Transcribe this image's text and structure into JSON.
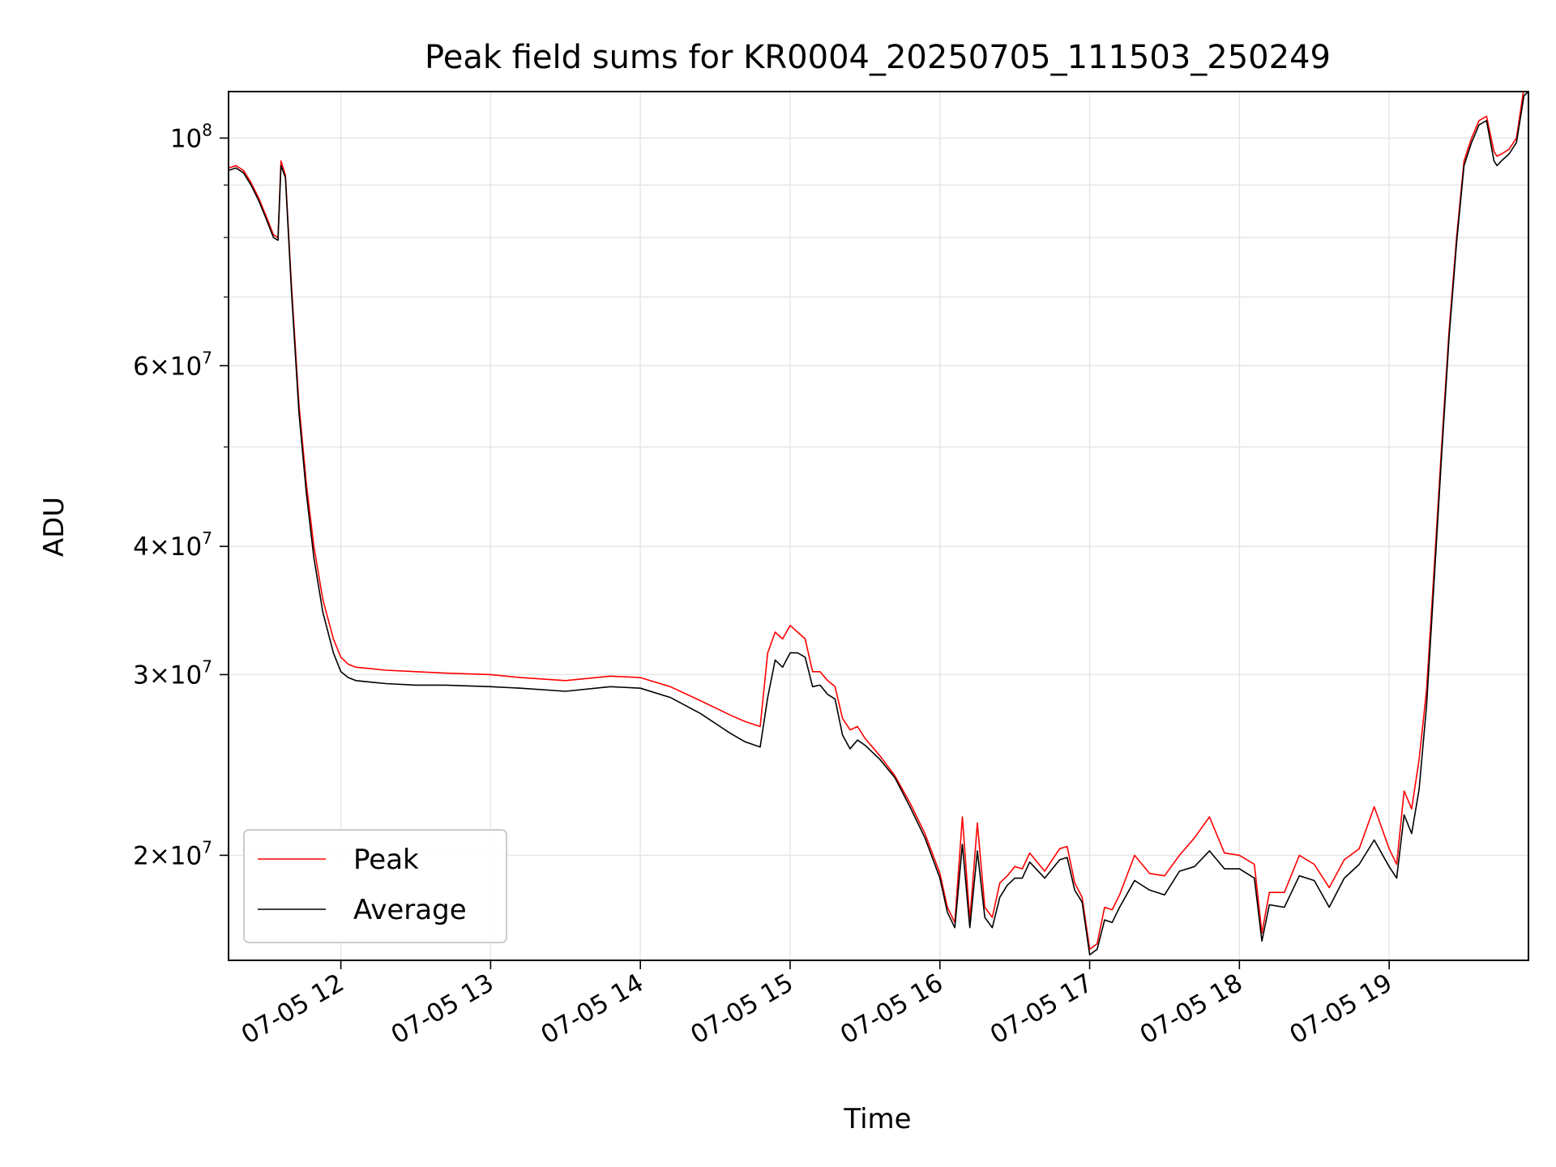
{
  "chart_data": {
    "type": "line",
    "title": "Peak field sums for KR0004_20250705_111503_250249",
    "xlabel": "Time",
    "ylabel": "ADU",
    "x_unit": "hours",
    "xlim": [
      11.25,
      19.93
    ],
    "ylim": [
      15800000,
      111000000
    ],
    "yscale": "log",
    "grid": true,
    "legend_position": "lower-left",
    "x_ticks": [
      {
        "value": 12,
        "label": "07-05 12"
      },
      {
        "value": 13,
        "label": "07-05 13"
      },
      {
        "value": 14,
        "label": "07-05 14"
      },
      {
        "value": 15,
        "label": "07-05 15"
      },
      {
        "value": 16,
        "label": "07-05 16"
      },
      {
        "value": 17,
        "label": "07-05 17"
      },
      {
        "value": 18,
        "label": "07-05 18"
      },
      {
        "value": 19,
        "label": "07-05 19"
      }
    ],
    "y_major_ticks": [
      {
        "value": 100000000,
        "base": "10",
        "exp": "8",
        "mult": ""
      },
      {
        "value": 60000000,
        "base": "10",
        "exp": "7",
        "mult": "6"
      },
      {
        "value": 40000000,
        "base": "10",
        "exp": "7",
        "mult": "4"
      },
      {
        "value": 30000000,
        "base": "10",
        "exp": "7",
        "mult": "3"
      },
      {
        "value": 20000000,
        "base": "10",
        "exp": "7",
        "mult": "2"
      }
    ],
    "y_minor_ticks": [
      50000000,
      70000000,
      80000000,
      90000000
    ],
    "series": [
      {
        "name": "Peak",
        "color": "#ff0000",
        "x": [
          11.25,
          11.3,
          11.35,
          11.4,
          11.45,
          11.5,
          11.55,
          11.58,
          11.6,
          11.63,
          11.67,
          11.72,
          11.77,
          11.82,
          11.88,
          11.95,
          12.0,
          12.05,
          12.1,
          12.2,
          12.3,
          12.5,
          12.7,
          13.0,
          13.2,
          13.5,
          13.8,
          14.0,
          14.2,
          14.4,
          14.6,
          14.7,
          14.8,
          14.85,
          14.9,
          14.95,
          15.0,
          15.05,
          15.1,
          15.15,
          15.2,
          15.25,
          15.3,
          15.35,
          15.4,
          15.45,
          15.5,
          15.6,
          15.7,
          15.8,
          15.9,
          16.0,
          16.05,
          16.1,
          16.15,
          16.2,
          16.25,
          16.3,
          16.35,
          16.4,
          16.45,
          16.5,
          16.55,
          16.6,
          16.7,
          16.8,
          16.85,
          16.9,
          16.95,
          17.0,
          17.05,
          17.1,
          17.15,
          17.2,
          17.3,
          17.4,
          17.5,
          17.6,
          17.7,
          17.8,
          17.9,
          18.0,
          18.1,
          18.15,
          18.2,
          18.3,
          18.4,
          18.5,
          18.6,
          18.7,
          18.8,
          18.9,
          19.0,
          19.05,
          19.1,
          19.15,
          19.2,
          19.25,
          19.3,
          19.35,
          19.4,
          19.45,
          19.5,
          19.55,
          19.6,
          19.65,
          19.7,
          19.72,
          19.75,
          19.8,
          19.85,
          19.9,
          19.93
        ],
        "values": [
          93500000,
          94000000,
          93000000,
          90500000,
          87500000,
          84000000,
          80500000,
          80000000,
          95000000,
          92000000,
          72000000,
          55000000,
          46000000,
          40000000,
          35500000,
          32500000,
          31200000,
          30700000,
          30500000,
          30400000,
          30300000,
          30200000,
          30100000,
          30000000,
          29800000,
          29600000,
          29900000,
          29800000,
          29200000,
          28300000,
          27400000,
          27000000,
          26700000,
          31500000,
          33000000,
          32500000,
          33500000,
          33000000,
          32500000,
          30200000,
          30200000,
          29600000,
          29200000,
          27200000,
          26500000,
          26700000,
          26000000,
          25000000,
          23900000,
          22500000,
          21000000,
          19200000,
          17800000,
          17200000,
          21800000,
          17300000,
          21500000,
          17800000,
          17400000,
          18800000,
          19100000,
          19500000,
          19400000,
          20100000,
          19300000,
          20300000,
          20400000,
          18800000,
          18200000,
          16200000,
          16400000,
          17800000,
          17700000,
          18300000,
          20000000,
          19200000,
          19100000,
          20000000,
          20800000,
          21800000,
          20100000,
          20000000,
          19600000,
          16800000,
          18400000,
          18400000,
          20000000,
          19600000,
          18600000,
          19800000,
          20300000,
          22300000,
          20300000,
          19600000,
          23100000,
          22200000,
          24800000,
          29000000,
          38000000,
          50000000,
          65000000,
          80000000,
          95000000,
          100000000,
          104000000,
          105000000,
          97000000,
          96000000,
          96500000,
          97500000,
          100000000,
          112000000,
          112000000
        ]
      },
      {
        "name": "Average",
        "color": "#000000",
        "x": [
          11.25,
          11.3,
          11.35,
          11.4,
          11.45,
          11.5,
          11.55,
          11.58,
          11.6,
          11.63,
          11.67,
          11.72,
          11.77,
          11.82,
          11.88,
          11.95,
          12.0,
          12.05,
          12.1,
          12.2,
          12.3,
          12.5,
          12.7,
          13.0,
          13.2,
          13.5,
          13.8,
          14.0,
          14.2,
          14.4,
          14.6,
          14.7,
          14.8,
          14.85,
          14.9,
          14.95,
          15.0,
          15.05,
          15.1,
          15.15,
          15.2,
          15.25,
          15.3,
          15.35,
          15.4,
          15.45,
          15.5,
          15.6,
          15.7,
          15.8,
          15.9,
          16.0,
          16.05,
          16.1,
          16.15,
          16.2,
          16.25,
          16.3,
          16.35,
          16.4,
          16.45,
          16.5,
          16.55,
          16.6,
          16.7,
          16.8,
          16.85,
          16.9,
          16.95,
          17.0,
          17.05,
          17.1,
          17.15,
          17.2,
          17.3,
          17.4,
          17.5,
          17.6,
          17.7,
          17.8,
          17.9,
          18.0,
          18.1,
          18.15,
          18.2,
          18.3,
          18.4,
          18.5,
          18.6,
          18.7,
          18.8,
          18.9,
          19.0,
          19.05,
          19.1,
          19.15,
          19.2,
          19.25,
          19.3,
          19.35,
          19.4,
          19.45,
          19.5,
          19.55,
          19.6,
          19.65,
          19.7,
          19.72,
          19.75,
          19.8,
          19.85,
          19.9,
          19.93
        ],
        "values": [
          93000000,
          93500000,
          92500000,
          90000000,
          87000000,
          83500000,
          80000000,
          79500000,
          94000000,
          91500000,
          71000000,
          54000000,
          45000000,
          39000000,
          34500000,
          31500000,
          30200000,
          29800000,
          29600000,
          29500000,
          29400000,
          29300000,
          29300000,
          29200000,
          29100000,
          28900000,
          29200000,
          29100000,
          28500000,
          27500000,
          26300000,
          25800000,
          25500000,
          28500000,
          31000000,
          30500000,
          31500000,
          31500000,
          31200000,
          29200000,
          29300000,
          28700000,
          28400000,
          26200000,
          25400000,
          25900000,
          25600000,
          24800000,
          23800000,
          22300000,
          20800000,
          19000000,
          17600000,
          17000000,
          20500000,
          17000000,
          20200000,
          17400000,
          17000000,
          18200000,
          18700000,
          19000000,
          19000000,
          19700000,
          19000000,
          19800000,
          19900000,
          18500000,
          18000000,
          16000000,
          16200000,
          17300000,
          17200000,
          17800000,
          18900000,
          18500000,
          18300000,
          19300000,
          19500000,
          20200000,
          19400000,
          19400000,
          19000000,
          16500000,
          17900000,
          17800000,
          19100000,
          18900000,
          17800000,
          19000000,
          19600000,
          20700000,
          19500000,
          19000000,
          21900000,
          21000000,
          23200000,
          28000000,
          37000000,
          49000000,
          64000000,
          79000000,
          94000000,
          99000000,
          103000000,
          104000000,
          95000000,
          94000000,
          95000000,
          96500000,
          99000000,
          110000000,
          111000000
        ]
      }
    ]
  }
}
